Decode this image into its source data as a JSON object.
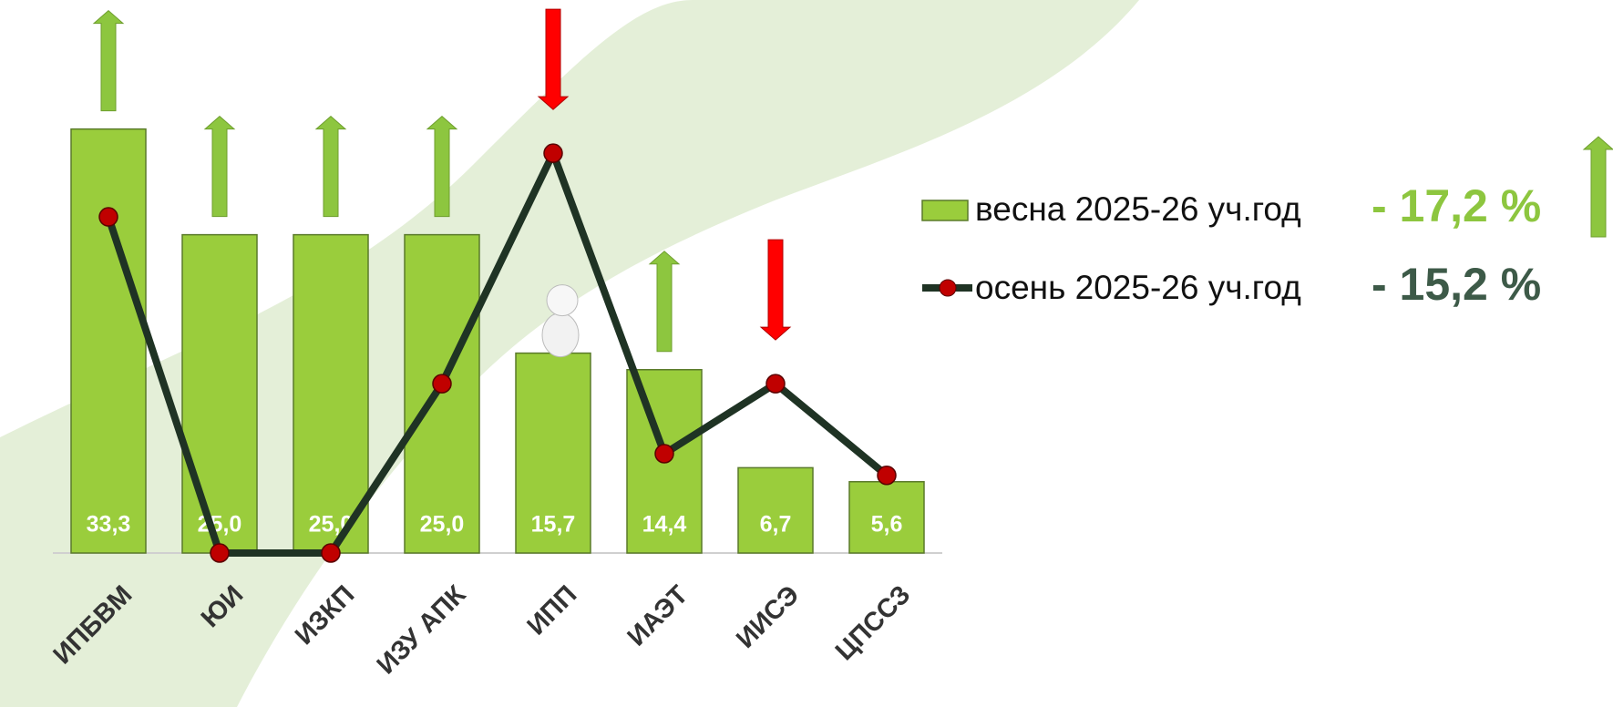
{
  "chart_data": {
    "type": "bar-line",
    "categories": [
      "ИПБВМ",
      "ЮИ",
      "ИЗКП",
      "ИЗУ АПК",
      "ИПП",
      "ИАЭТ",
      "ИИСЭ",
      "ЦПССЗ"
    ],
    "series": [
      {
        "name": "весна 2025-26 уч.год",
        "total_label": "- 17,2 %",
        "color": "#9acd3c",
        "total_color": "#8dc63f",
        "kind": "bar",
        "values": [
          33.3,
          25.0,
          25.0,
          25.0,
          15.7,
          14.4,
          6.7,
          5.6
        ],
        "value_labels": [
          "33,3",
          "25,0",
          "25,0",
          "25,0",
          "15,7",
          "14,4",
          "6,7",
          "5,6"
        ]
      },
      {
        "name": "осень 2025-26 уч.год",
        "total_label": "- 15,2 %",
        "color": "#1f3324",
        "marker_color": "#c00000",
        "total_color": "#3d5a48",
        "kind": "line",
        "values": [
          26.4,
          0,
          0,
          13.3,
          31.4,
          7.8,
          13.3,
          6.1
        ]
      }
    ],
    "arrows": [
      "up",
      "up",
      "up",
      "up",
      "down",
      "up",
      "down",
      null
    ],
    "legend_arrow": "up",
    "ylim": [
      0,
      40
    ]
  }
}
